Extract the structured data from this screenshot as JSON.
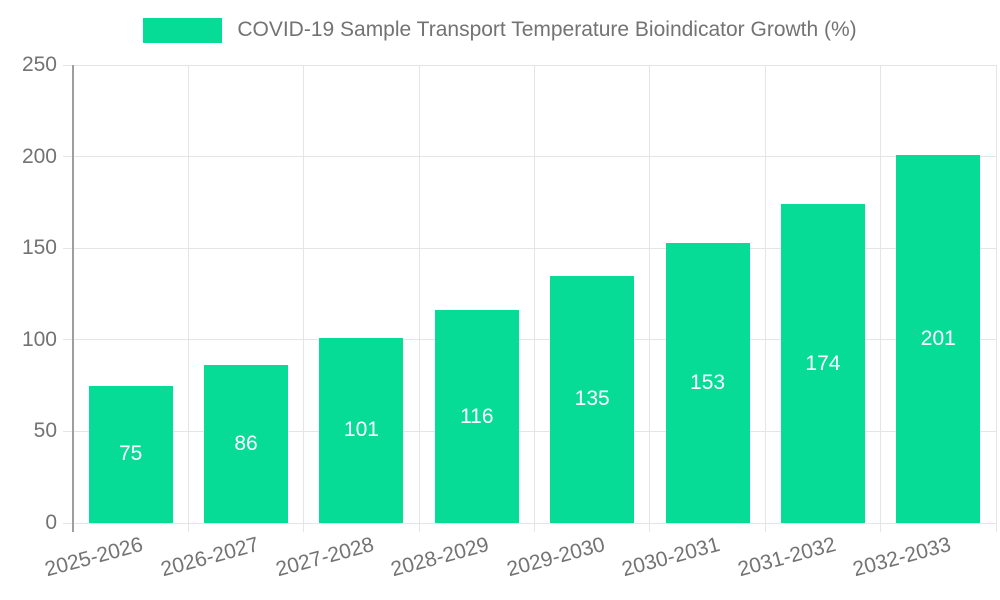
{
  "legend": {
    "label": "COVID-19 Sample Transport Temperature Bioindicator Growth (%)"
  },
  "chart_data": {
    "type": "bar",
    "title": "COVID-19 Sample Transport Temperature Bioindicator Growth (%)",
    "categories": [
      "2025-2026",
      "2026-2027",
      "2027-2028",
      "2028-2029",
      "2029-2030",
      "2030-2031",
      "2031-2032",
      "2032-2033"
    ],
    "values": [
      75,
      86,
      101,
      116,
      135,
      153,
      174,
      201
    ],
    "value_labels": [
      "75",
      "86",
      "101",
      "116",
      "135",
      "153",
      "174",
      "201"
    ],
    "xlabel": "",
    "ylabel": "",
    "ylim": [
      0,
      250
    ],
    "yticks": [
      0,
      50,
      100,
      150,
      200,
      250
    ],
    "grid": true,
    "legend_position": "top",
    "x_label_rotation_deg": -15,
    "colors": {
      "bar": "#06DC96",
      "value_label": "#ffffff",
      "axis_text": "#737373",
      "grid": "#e5e5e5",
      "tick": "#dcdcdc",
      "axis_line": "#9e9e9e",
      "background": "#ffffff"
    }
  }
}
